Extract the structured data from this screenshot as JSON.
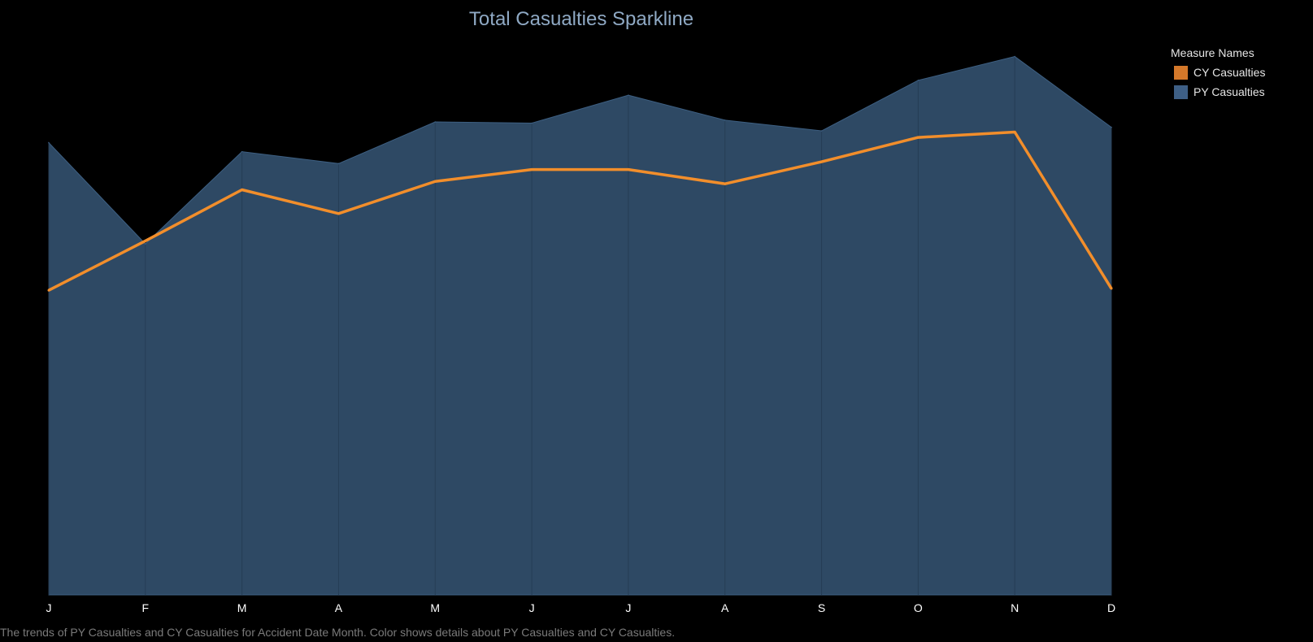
{
  "chart_data": {
    "type": "area",
    "title": "Total Casualties Sparkline",
    "categories": [
      "J",
      "F",
      "M",
      "A",
      "M",
      "J",
      "J",
      "A",
      "S",
      "O",
      "N",
      "D"
    ],
    "series": [
      {
        "name": "PY Casualties",
        "kind": "area",
        "color": "#4e79a7",
        "values": [
          76.0,
          59.0,
          74.5,
          72.5,
          79.5,
          79.3,
          84.0,
          79.8,
          78.0,
          86.5,
          90.5,
          78.6
        ]
      },
      {
        "name": "CY Casualties",
        "kind": "line",
        "color": "#f28e2b",
        "values": [
          51.2,
          59.5,
          68.1,
          64.1,
          69.5,
          71.5,
          71.5,
          69.1,
          72.8,
          76.9,
          77.8,
          51.5
        ]
      }
    ],
    "ylim": [
      0,
      100
    ],
    "y_axis_shown": false,
    "grid": false
  },
  "legend": {
    "title": "Measure Names",
    "position": "top-right",
    "items": [
      {
        "label": "CY Casualties",
        "color": "#d4782a"
      },
      {
        "label": "PY Casualties",
        "color": "#3e5f85"
      }
    ]
  },
  "caption": "The trends of PY Casualties and CY Casualties for Accident Date Month.  Color shows details about PY Casualties and CY Casualties.",
  "colors": {
    "background": "#000000",
    "area_fill": "#2e4964",
    "area_edge": "#3d5f82",
    "line": "#f28e2b",
    "title": "#8fa9c4"
  }
}
